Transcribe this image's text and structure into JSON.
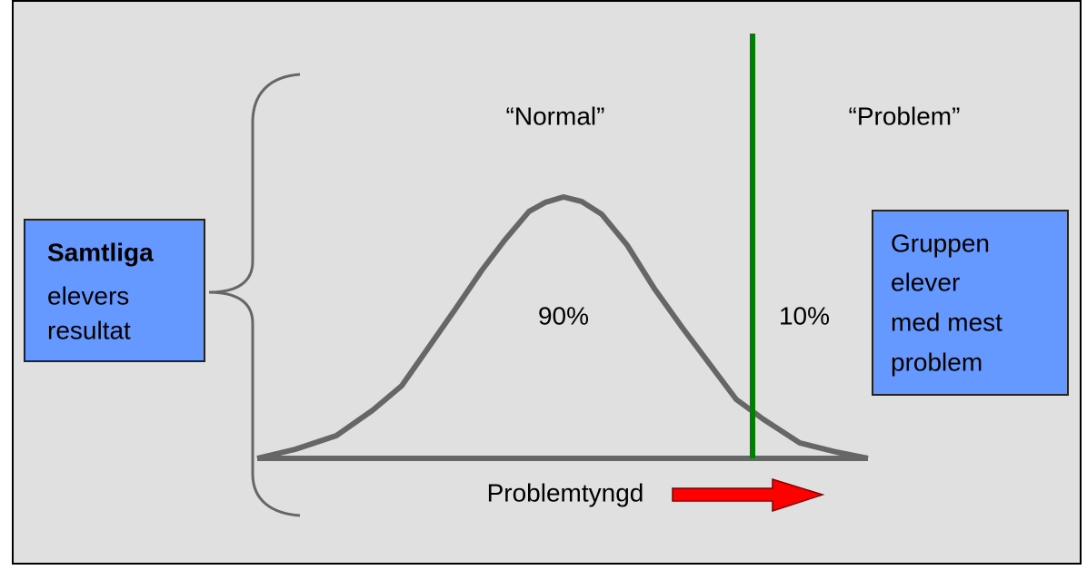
{
  "labels": {
    "normal": "“Normal”",
    "problem": "“Problem”",
    "left_share": "90%",
    "right_share": "10%",
    "axis": "Problemtyngd"
  },
  "left_box": {
    "bold": "Samtliga",
    "lines": [
      "elevers",
      "resultat"
    ]
  },
  "right_box": {
    "lines": [
      "Gruppen",
      "elever",
      "med mest",
      "problem"
    ]
  }
}
